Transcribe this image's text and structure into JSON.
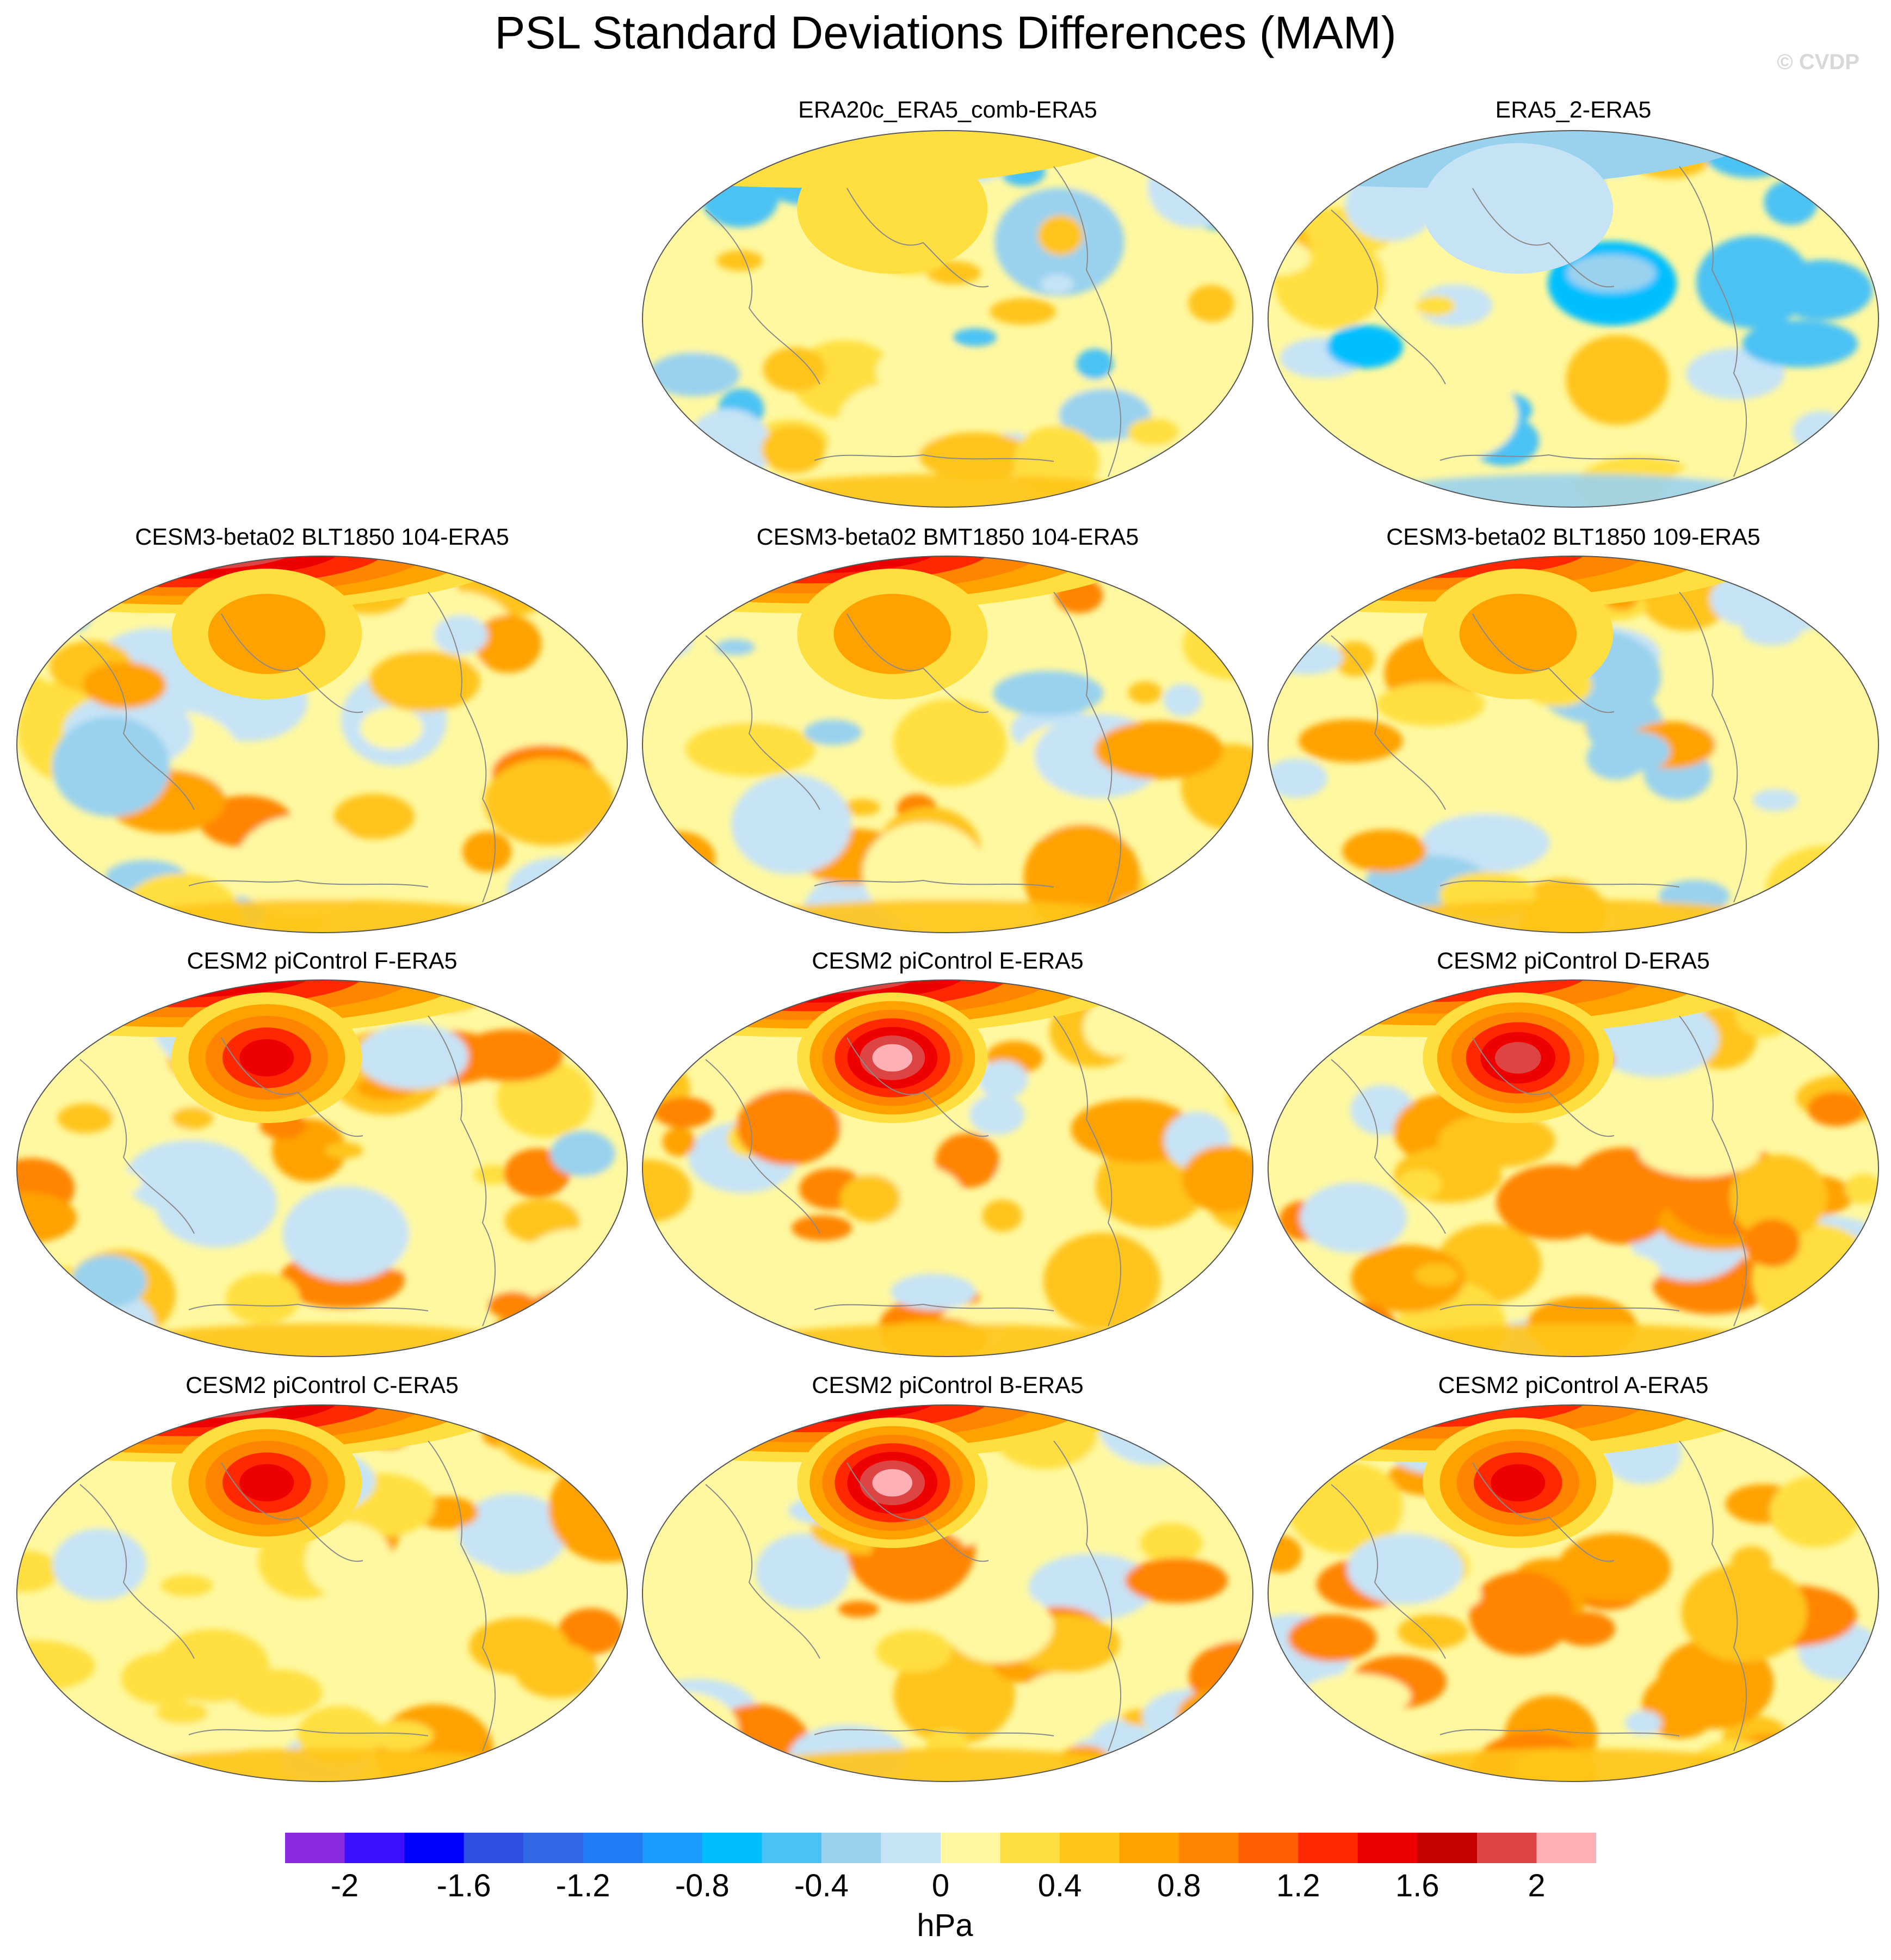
{
  "title": "PSL Standard Deviations Differences (MAM)",
  "credit": "© CVDP",
  "chart_data": {
    "type": "heatmap",
    "title": "PSL Standard Deviations Differences (MAM)",
    "variable": "PSL",
    "season": "MAM",
    "units": "hPa",
    "colorbar": {
      "levels": [
        -2.2,
        -2.0,
        -1.8,
        -1.6,
        -1.4,
        -1.2,
        -1.0,
        -0.8,
        -0.6,
        -0.4,
        -0.2,
        0.0,
        0.2,
        0.4,
        0.6,
        0.8,
        1.0,
        1.2,
        1.4,
        1.6,
        1.8,
        2.0,
        2.2
      ],
      "tick_labels": [
        "-2",
        "-1.6",
        "-1.2",
        "-0.8",
        "-0.4",
        "0",
        "0.4",
        "0.8",
        "1.2",
        "1.6",
        "2"
      ],
      "tick_values": [
        -2.0,
        -1.6,
        -1.2,
        -0.8,
        -0.4,
        0.0,
        0.4,
        0.8,
        1.2,
        1.6,
        2.0
      ],
      "colors": [
        "#8a2be2",
        "#3a10ff",
        "#0000ff",
        "#2f4fe0",
        "#3068e8",
        "#1e7cf4",
        "#1a9cff",
        "#00bfff",
        "#4cc2f4",
        "#9ad2ee",
        "#c6e3f6",
        "#fff8a0",
        "#ffdf40",
        "#ffc41a",
        "#ffa200",
        "#ff8400",
        "#ff5d00",
        "#ff2800",
        "#ee0000",
        "#c40000",
        "#dd4444",
        "#ffb0b4"
      ]
    },
    "panels": [
      {
        "label": "ERA20c_ERA5_comb-ERA5",
        "arctic_max": 0.2,
        "npac_max": 0.3
      },
      {
        "label": "ERA5_2-ERA5",
        "arctic_max": -0.3,
        "npac_max": -0.2
      },
      {
        "label": "CESM3-beta02 BLT1850 104-ERA5",
        "arctic_max": 2.1,
        "npac_max": 0.8
      },
      {
        "label": "CESM3-beta02 BMT1850 104-ERA5",
        "arctic_max": 1.9,
        "npac_max": 0.8
      },
      {
        "label": "CESM3-beta02 BLT1850 109-ERA5",
        "arctic_max": 1.5,
        "npac_max": 0.7
      },
      {
        "label": "CESM2 piControl F-ERA5",
        "arctic_max": 1.8,
        "npac_max": 1.6
      },
      {
        "label": "CESM2 piControl E-ERA5",
        "arctic_max": 2.1,
        "npac_max": 2.1
      },
      {
        "label": "CESM2 piControl D-ERA5",
        "arctic_max": 1.6,
        "npac_max": 2.0
      },
      {
        "label": "CESM2 piControl C-ERA5",
        "arctic_max": 2.2,
        "npac_max": 1.6
      },
      {
        "label": "CESM2 piControl B-ERA5",
        "arctic_max": 1.9,
        "npac_max": 2.1
      },
      {
        "label": "CESM2 piControl A-ERA5",
        "arctic_max": 1.7,
        "npac_max": 1.7
      }
    ]
  }
}
